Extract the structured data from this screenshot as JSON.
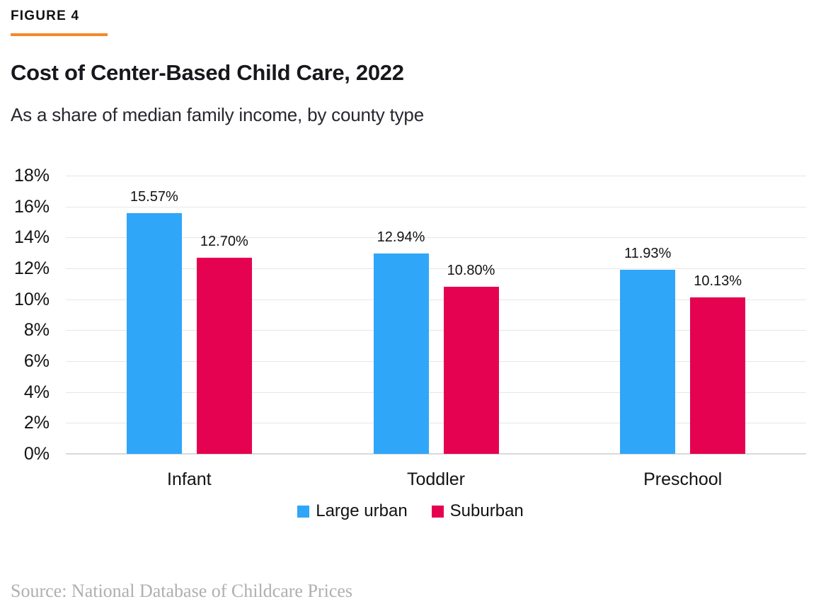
{
  "header": {
    "figure_label": "FIGURE 4",
    "title": "Cost of Center-Based Child Care, 2022",
    "subtitle": "As a share of median family income, by county type"
  },
  "footer": {
    "source": "Source: National Database of Childcare Prices"
  },
  "colors": {
    "accent_rule_orange": "#F6882B",
    "large_urban_blue": "#30A6F8",
    "suburban_red": "#E50351",
    "gridline": "#E6E6E6",
    "baseline": "#D9D9D9",
    "text": "#121212",
    "source_gray": "#AFAFB4"
  },
  "chart_data": {
    "type": "bar",
    "title": "Cost of Center-Based Child Care, 2022",
    "subtitle": "As a share of median family income, by county type",
    "categories": [
      "Infant",
      "Toddler",
      "Preschool"
    ],
    "series": [
      {
        "name": "Large urban",
        "color": "#30A6F8",
        "values": [
          15.57,
          12.94,
          11.93
        ],
        "labels": [
          "15.57%",
          "12.94%",
          "11.93%"
        ]
      },
      {
        "name": "Suburban",
        "color": "#E50351",
        "values": [
          12.7,
          10.8,
          10.13
        ],
        "labels": [
          "12.70%",
          "10.80%",
          "10.13%"
        ]
      }
    ],
    "xlabel": "",
    "ylabel": "",
    "ylim": [
      0,
      18
    ],
    "y_ticks": [
      0,
      2,
      4,
      6,
      8,
      10,
      12,
      14,
      16,
      18
    ],
    "y_tick_labels": [
      "0%",
      "2%",
      "4%",
      "6%",
      "8%",
      "10%",
      "12%",
      "14%",
      "16%",
      "18%"
    ],
    "grid": true,
    "legend_position": "bottom-center"
  }
}
